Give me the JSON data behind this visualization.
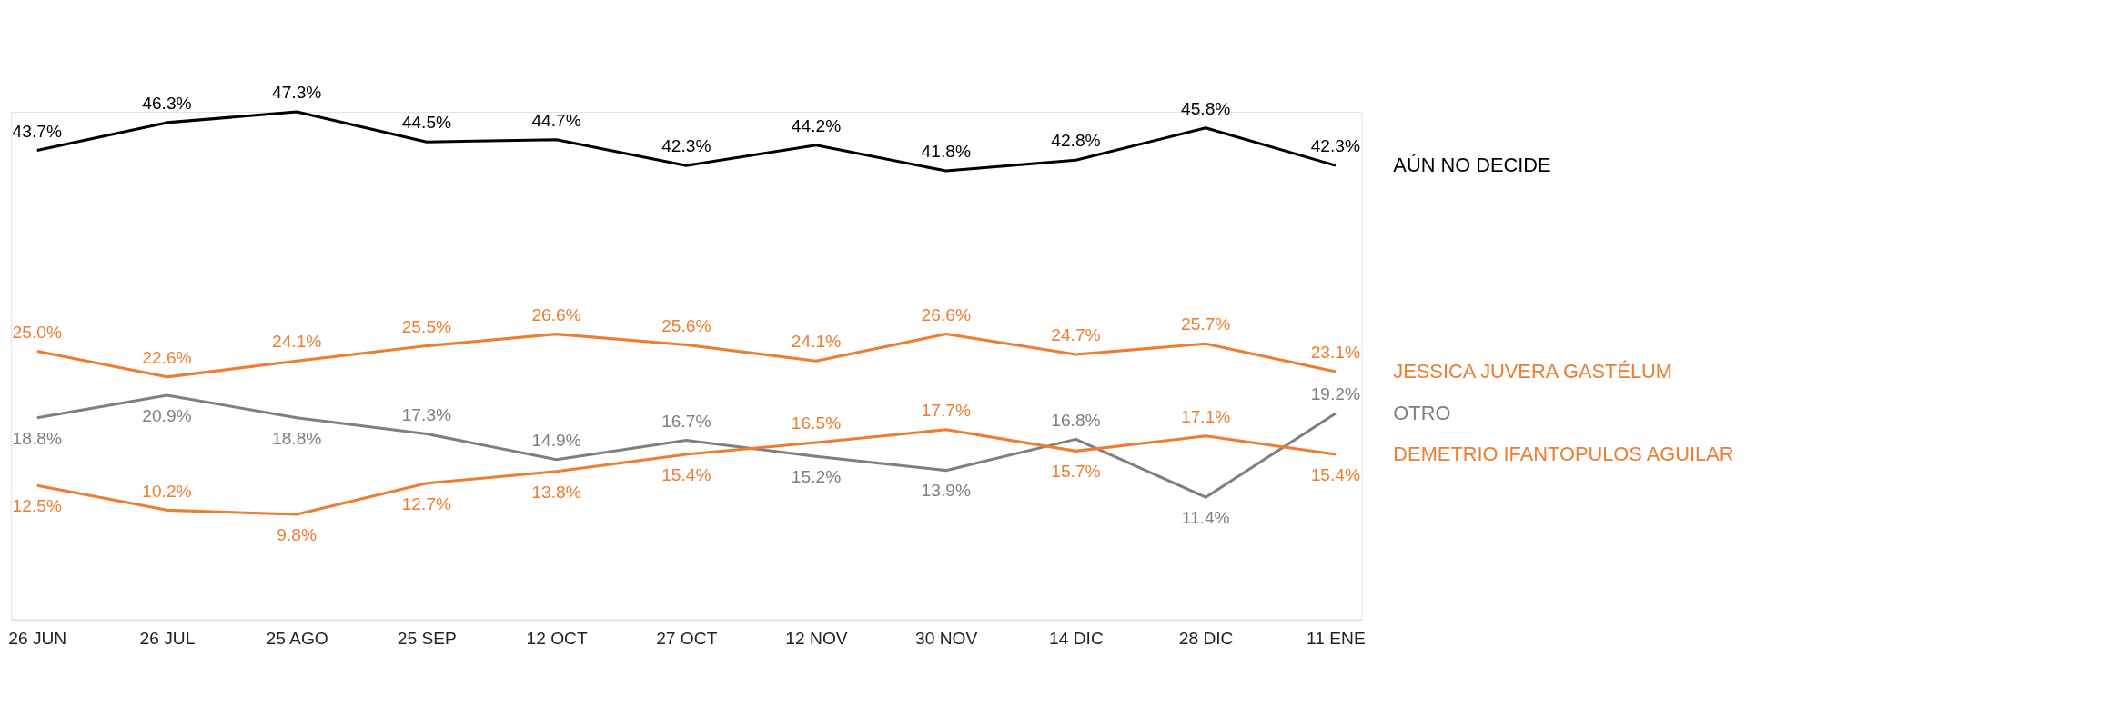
{
  "chart_data": {
    "type": "line",
    "categories": [
      "26 JUN",
      "26 JUL",
      "25 AGO",
      "25 SEP",
      "12 OCT",
      "27 OCT",
      "12 NOV",
      "30 NOV",
      "14 DIC",
      "28 DIC",
      "11 ENE"
    ],
    "series": [
      {
        "name": "AÚN NO DECIDE",
        "color": "#000000",
        "values": [
          43.7,
          46.3,
          47.3,
          44.5,
          44.7,
          42.3,
          44.2,
          41.8,
          42.8,
          45.8,
          42.3
        ],
        "value_labels": [
          "43.7%",
          "46.3%",
          "47.3%",
          "44.5%",
          "44.7%",
          "42.3%",
          "44.2%",
          "41.8%",
          "42.8%",
          "45.8%",
          "42.3%"
        ]
      },
      {
        "name": "JESSICA  JUVERA GASTÉLUM",
        "color": "#ed7d31",
        "values": [
          25.0,
          22.6,
          24.1,
          25.5,
          26.6,
          25.6,
          24.1,
          26.6,
          24.7,
          25.7,
          23.1
        ],
        "value_labels": [
          "25.0%",
          "22.6%",
          "24.1%",
          "25.5%",
          "26.6%",
          "25.6%",
          "24.1%",
          "26.6%",
          "24.7%",
          "25.7%",
          "23.1%"
        ]
      },
      {
        "name": "OTRO",
        "color": "#7f7f7f",
        "values": [
          18.8,
          20.9,
          18.8,
          17.3,
          14.9,
          16.7,
          15.2,
          13.9,
          16.8,
          11.4,
          19.2
        ],
        "value_labels": [
          "18.8%",
          "20.9%",
          "18.8%",
          "17.3%",
          "14.9%",
          "16.7%",
          "15.2%",
          "13.9%",
          "16.8%",
          "11.4%",
          "19.2%"
        ]
      },
      {
        "name": "DEMETRIO IFANTOPULOS AGUILAR",
        "color": "#ed7d31",
        "values": [
          12.5,
          10.2,
          9.8,
          12.7,
          13.8,
          15.4,
          16.5,
          17.7,
          15.7,
          17.1,
          15.4
        ],
        "value_labels": [
          "12.5%",
          "10.2%",
          "9.8%",
          "12.7%",
          "13.8%",
          "15.4%",
          "16.5%",
          "17.7%",
          "15.7%",
          "17.1%",
          "15.4%"
        ]
      }
    ],
    "legend": false,
    "grid": false,
    "marker": "none",
    "line_style": "solid",
    "tick_labels": "x"
  }
}
